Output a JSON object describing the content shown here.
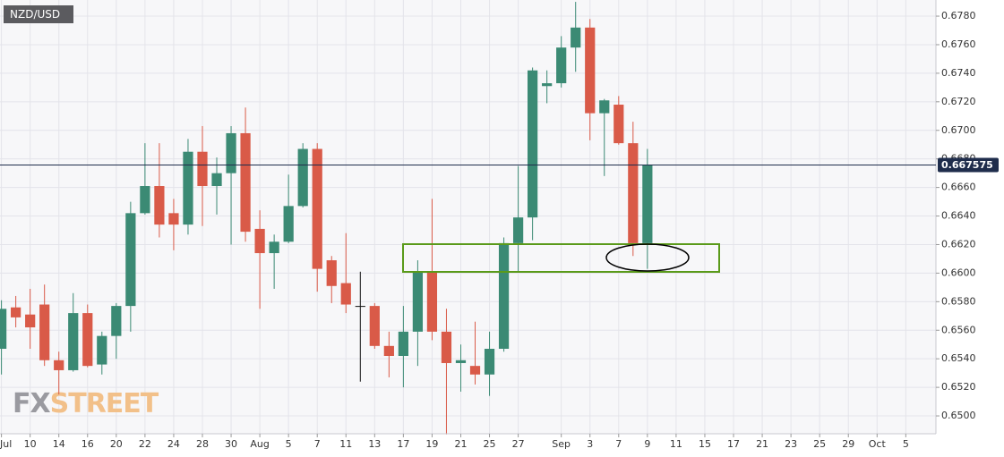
{
  "chart_data": {
    "type": "candlestick",
    "title": "NZD/USD",
    "watermark": {
      "prefix": "FX",
      "suffix": "STREET"
    },
    "x": [
      0,
      1,
      2,
      3,
      4,
      5,
      6,
      7,
      8,
      9,
      10,
      11,
      12,
      13,
      14,
      15,
      16,
      17,
      18,
      19,
      20,
      21,
      22,
      23,
      24,
      25,
      26,
      27,
      28,
      29,
      30,
      31,
      32,
      33,
      34,
      35,
      36,
      37,
      38,
      39,
      40,
      41,
      42,
      43,
      44,
      45
    ],
    "open": [
      0.6547,
      0.6576,
      0.6571,
      0.6578,
      0.6539,
      0.6532,
      0.6572,
      0.6536,
      0.6556,
      0.6577,
      0.6642,
      0.6661,
      0.6642,
      0.6634,
      0.6685,
      0.6661,
      0.667,
      0.6698,
      0.6631,
      0.6614,
      0.6622,
      0.6647,
      0.6687,
      0.6609,
      0.6593,
      0.6577,
      0.6577,
      0.6549,
      0.6542,
      0.6559,
      0.6601,
      0.6559,
      0.6537,
      0.6535,
      0.6529,
      0.6547,
      0.6621,
      0.6639,
      0.6731,
      0.6733,
      0.6758,
      0.6772,
      0.6712,
      0.6718,
      0.6691,
      0.6621
    ],
    "high": [
      0.6581,
      0.6584,
      0.6589,
      0.6592,
      0.6545,
      0.6586,
      0.6578,
      0.6559,
      0.6579,
      0.665,
      0.6691,
      0.6691,
      0.6652,
      0.6694,
      0.6703,
      0.6681,
      0.6703,
      0.6716,
      0.6644,
      0.6627,
      0.6669,
      0.6691,
      0.6691,
      0.6612,
      0.6628,
      0.6601,
      0.6579,
      0.6559,
      0.6577,
      0.6609,
      0.6652,
      0.6575,
      0.655,
      0.6566,
      0.6559,
      0.6625,
      0.6675,
      0.6744,
      0.6742,
      0.6766,
      0.679,
      0.6778,
      0.6722,
      0.6724,
      0.6706,
      0.6687
    ],
    "low": [
      0.6529,
      0.6562,
      0.6547,
      0.6535,
      0.6515,
      0.6531,
      0.6534,
      0.6529,
      0.654,
      0.6559,
      0.6641,
      0.6625,
      0.6616,
      0.6627,
      0.6633,
      0.6641,
      0.662,
      0.6622,
      0.6575,
      0.6589,
      0.6621,
      0.6646,
      0.6587,
      0.6579,
      0.6572,
      0.6524,
      0.6547,
      0.6527,
      0.652,
      0.6535,
      0.6553,
      0.6487,
      0.6517,
      0.6522,
      0.6514,
      0.6545,
      0.6601,
      0.6623,
      0.6719,
      0.673,
      0.6741,
      0.6693,
      0.6668,
      0.669,
      0.6612,
      0.6603
    ],
    "close": [
      0.6575,
      0.6569,
      0.6562,
      0.6539,
      0.6532,
      0.6572,
      0.6535,
      0.6556,
      0.6577,
      0.6642,
      0.6661,
      0.6634,
      0.6634,
      0.6685,
      0.6661,
      0.667,
      0.6698,
      0.6629,
      0.6614,
      0.6622,
      0.6647,
      0.6687,
      0.6603,
      0.6591,
      0.6578,
      0.6577,
      0.6549,
      0.6542,
      0.6559,
      0.6601,
      0.6559,
      0.6537,
      0.6539,
      0.6529,
      0.6547,
      0.6621,
      0.6639,
      0.6742,
      0.6733,
      0.6758,
      0.6772,
      0.6712,
      0.6721,
      0.6691,
      0.6621,
      0.6676
    ],
    "up_color": "#3b8a74",
    "down_color": "#d95a48",
    "doji_color": "#111111",
    "current_price": 0.667575,
    "current_price_color": "#1f2d4c",
    "xlim": [
      -0.1,
      65.1
    ],
    "xticks": [
      {
        "value": 0,
        "label": "Jul"
      },
      {
        "value": 2,
        "label": "10"
      },
      {
        "value": 4,
        "label": "14"
      },
      {
        "value": 6,
        "label": "16"
      },
      {
        "value": 8,
        "label": "20"
      },
      {
        "value": 10,
        "label": "22"
      },
      {
        "value": 12,
        "label": "24"
      },
      {
        "value": 14,
        "label": "28"
      },
      {
        "value": 16,
        "label": "30"
      },
      {
        "value": 18,
        "label": "Aug"
      },
      {
        "value": 20,
        "label": "5"
      },
      {
        "value": 22,
        "label": "7"
      },
      {
        "value": 24,
        "label": "11"
      },
      {
        "value": 26,
        "label": "13"
      },
      {
        "value": 28,
        "label": "17"
      },
      {
        "value": 30,
        "label": "19"
      },
      {
        "value": 32,
        "label": "21"
      },
      {
        "value": 34,
        "label": "25"
      },
      {
        "value": 36,
        "label": "27"
      },
      {
        "value": 39,
        "label": "Sep"
      },
      {
        "value": 41,
        "label": "3"
      },
      {
        "value": 43,
        "label": "7"
      },
      {
        "value": 45,
        "label": "9"
      },
      {
        "value": 47,
        "label": "11"
      },
      {
        "value": 49,
        "label": "15"
      },
      {
        "value": 51,
        "label": "17"
      },
      {
        "value": 53,
        "label": "21"
      },
      {
        "value": 55,
        "label": "23"
      },
      {
        "value": 57,
        "label": "25"
      },
      {
        "value": 59,
        "label": "29"
      },
      {
        "value": 61,
        "label": "Oct"
      },
      {
        "value": 63,
        "label": "5"
      }
    ],
    "ylim": [
      0.64875,
      0.67913
    ],
    "yticks": [
      {
        "value": 0.65,
        "label": "0.6500"
      },
      {
        "value": 0.652,
        "label": "0.6520"
      },
      {
        "value": 0.654,
        "label": "0.6540"
      },
      {
        "value": 0.656,
        "label": "0.6560"
      },
      {
        "value": 0.658,
        "label": "0.6580"
      },
      {
        "value": 0.66,
        "label": "0.6600"
      },
      {
        "value": 0.662,
        "label": "0.6620"
      },
      {
        "value": 0.664,
        "label": "0.6640"
      },
      {
        "value": 0.666,
        "label": "0.6660"
      },
      {
        "value": 0.668,
        "label": "0.6680"
      },
      {
        "value": 0.67,
        "label": "0.6700"
      },
      {
        "value": 0.672,
        "label": "0.6720"
      },
      {
        "value": 0.674,
        "label": "0.6740"
      },
      {
        "value": 0.676,
        "label": "0.6760"
      },
      {
        "value": 0.678,
        "label": "0.6780"
      }
    ],
    "grid": true
  }
}
